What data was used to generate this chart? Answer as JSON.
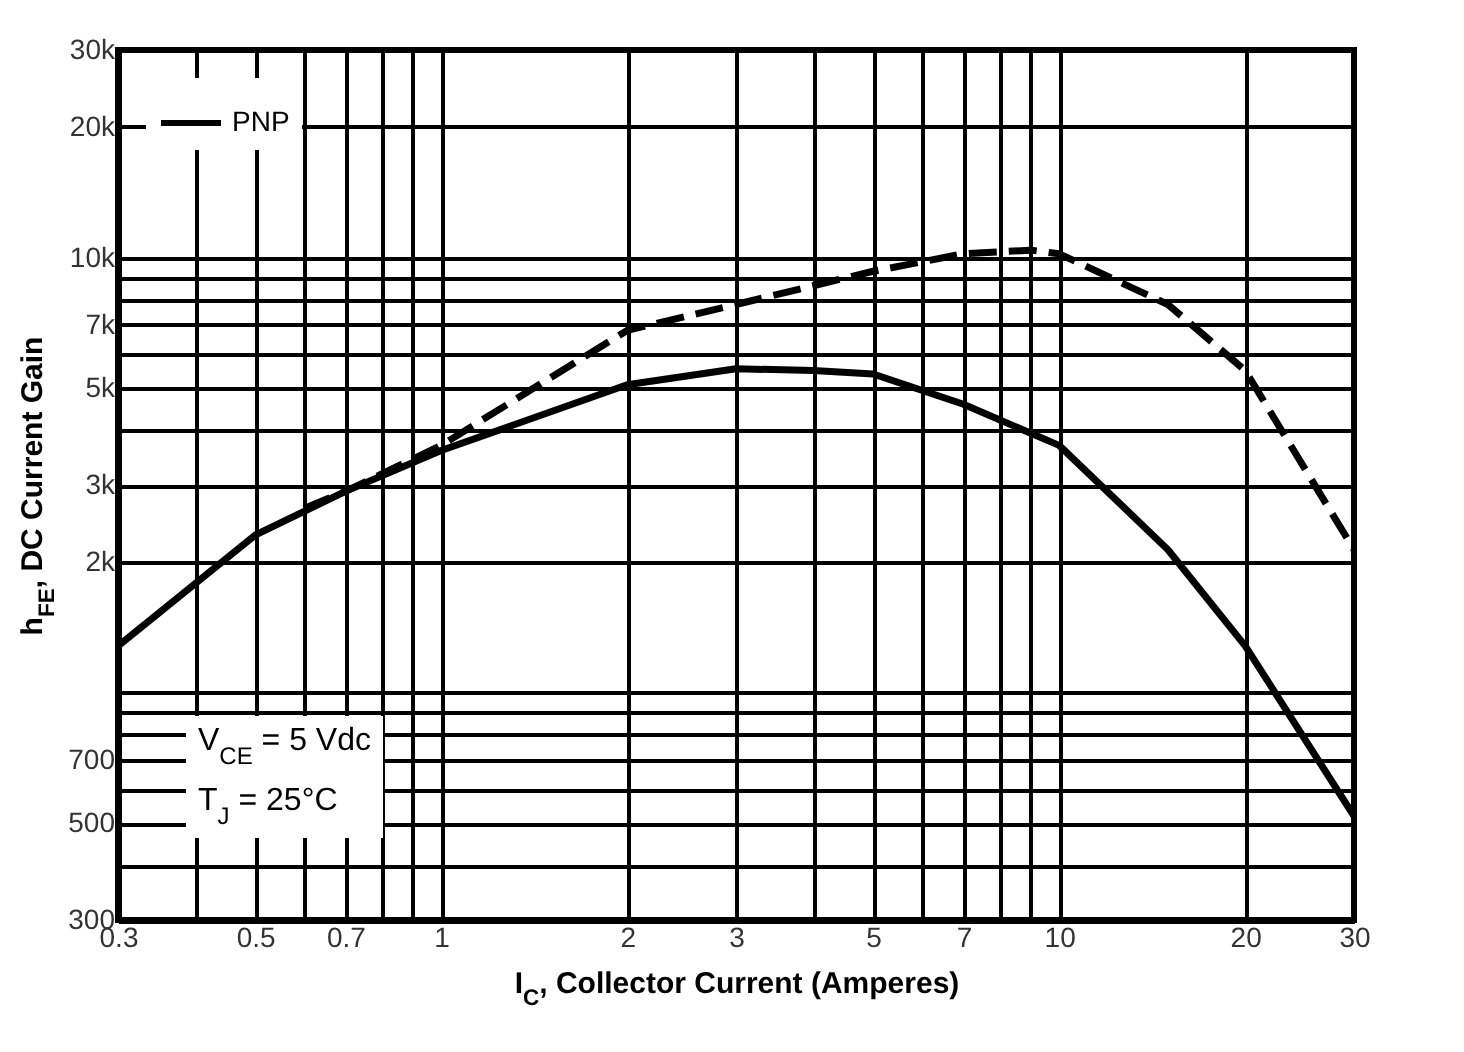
{
  "chart_data": {
    "type": "line",
    "xlabel": "I$_{C}$, Collector Current (Amperes)",
    "ylabel": "h$_{FE}$, DC Current Gain",
    "log": "xy",
    "xlim": [
      0.3,
      30
    ],
    "ylim": [
      300,
      30000
    ],
    "xticks": [
      0.3,
      {
        "value": 0.4,
        "label": null
      },
      0.5,
      {
        "value": 0.6,
        "label": null
      },
      0.7,
      {
        "value": 0.8,
        "label": null
      },
      {
        "value": 0.9,
        "label": null
      },
      1,
      2,
      3,
      {
        "value": 4,
        "label": null
      },
      5,
      {
        "value": 6,
        "label": null
      },
      7,
      {
        "value": 8,
        "label": null
      },
      {
        "value": 9,
        "label": null
      },
      10,
      20,
      30
    ],
    "yticks": [
      300,
      {
        "value": 400,
        "label": null
      },
      500,
      {
        "value": 600,
        "label": null
      },
      700,
      {
        "value": 800,
        "label": null
      },
      {
        "value": 900,
        "label": null
      },
      {
        "value": 1000,
        "label": null
      },
      {
        "value": 2000,
        "label": "2k"
      },
      {
        "value": 3000,
        "label": "3k"
      },
      {
        "value": 4000,
        "label": null
      },
      {
        "value": 5000,
        "label": "5k"
      },
      {
        "value": 6000,
        "label": null
      },
      {
        "value": 7000,
        "label": "7k"
      },
      {
        "value": 8000,
        "label": null
      },
      {
        "value": 9000,
        "label": null
      },
      {
        "value": 10000,
        "label": "10k"
      },
      {
        "value": 20000,
        "label": "20k"
      },
      {
        "value": 30000,
        "label": "30k"
      }
    ],
    "grid": true,
    "legend": "top left",
    "marker": "none",
    "series": [
      {
        "name": "PNP",
        "color": "#000000",
        "line_style": "solid",
        "x": [
          0.3,
          0.5,
          0.7,
          1,
          2,
          3,
          4,
          5,
          7,
          10,
          15,
          20,
          30
        ],
        "values": [
          1280,
          2300,
          2900,
          3600,
          5100,
          5550,
          5500,
          5400,
          4600,
          3700,
          2130,
          1280,
          520
        ]
      },
      {
        "color": "#000000",
        "line_style": "dashed",
        "x": [
          0.6,
          0.7,
          1,
          2,
          3,
          5,
          7,
          9,
          10,
          15,
          20,
          30
        ],
        "values": [
          2650,
          2900,
          3700,
          6800,
          7800,
          9300,
          10200,
          10400,
          10200,
          7800,
          5500,
          2130
        ]
      }
    ],
    "annotations": [
      "V$_{CE}$ = 5 Vdc",
      "T$_{J}$ = 25°C"
    ]
  }
}
